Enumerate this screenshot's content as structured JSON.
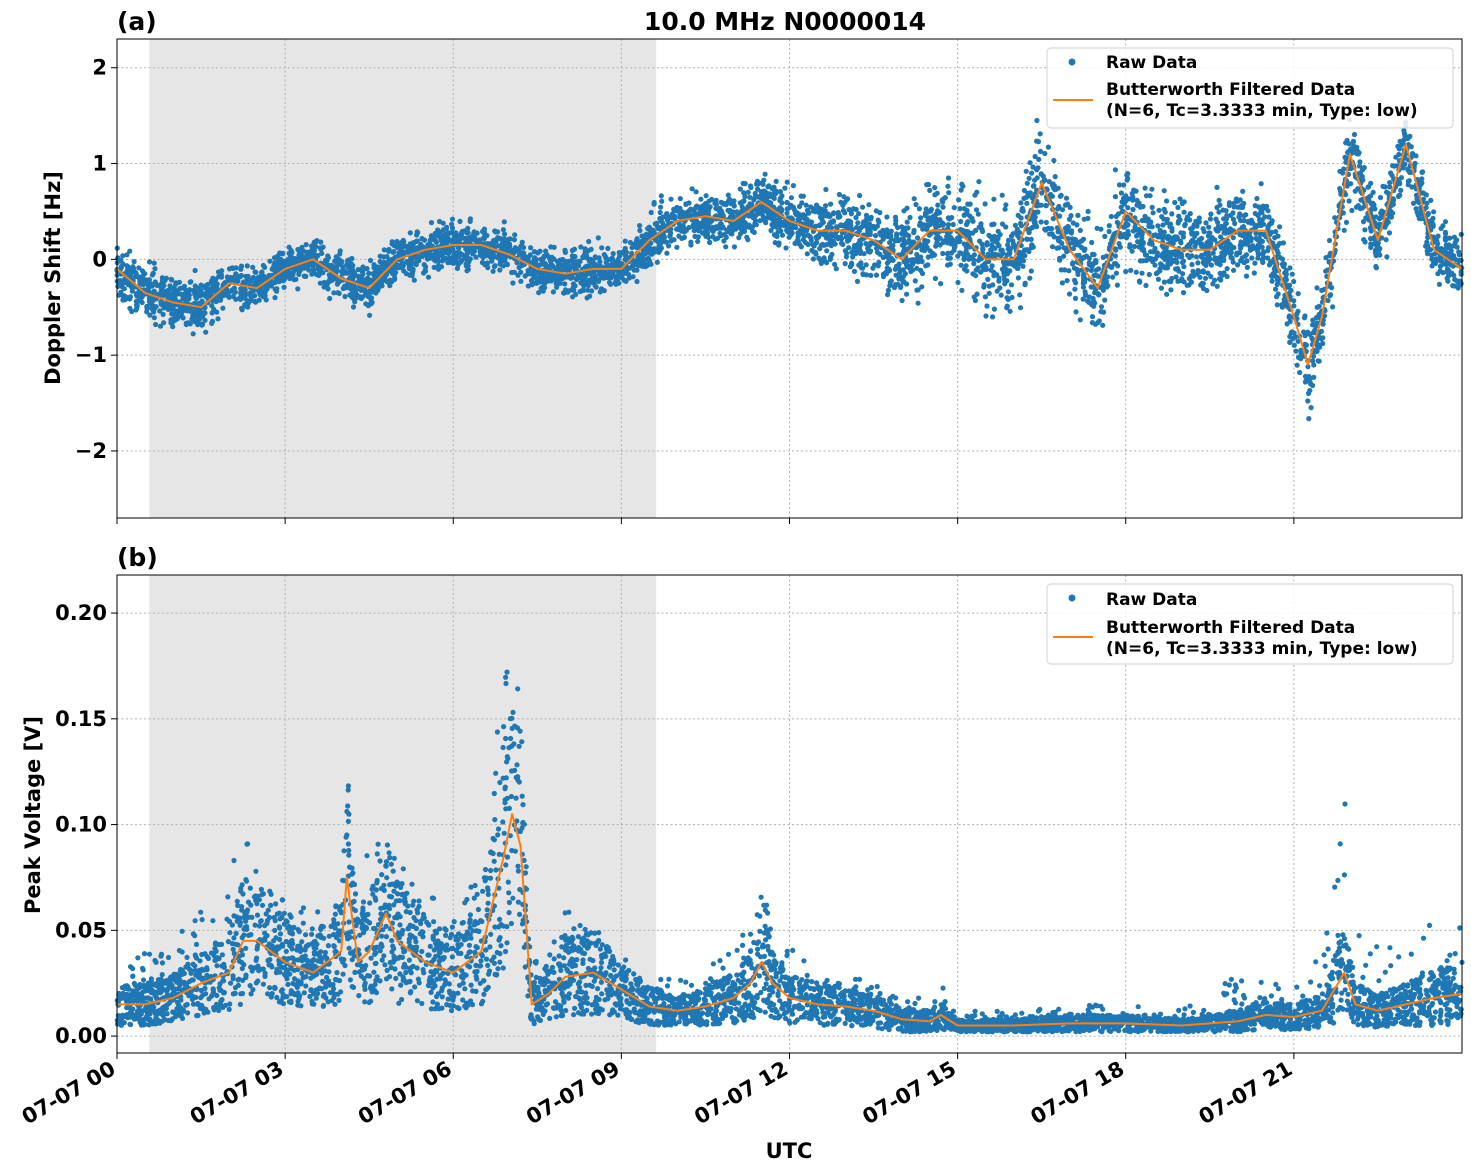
{
  "figure": {
    "title": "10.0 MHz N0000014",
    "xlabel": "UTC"
  },
  "colors": {
    "raw": "#1f77b4",
    "filtered": "#ff7f0e",
    "night_shade": "#e6e6e6",
    "grid": "#b0b0b0"
  },
  "legend": {
    "raw_label": "Raw Data",
    "filtered_line1": "Butterworth Filtered Data",
    "filtered_line2": "(N=6, Tc=3.3333 min, Type: low)",
    "placement": "top-right"
  },
  "chart_data": [
    {
      "type": "scatter",
      "panel_label": "(a)",
      "ylabel": "Doppler Shift [Hz]",
      "x_unit": "hours UTC",
      "xlim": [
        0,
        24
      ],
      "ylim": [
        -2.7,
        2.3
      ],
      "yticks": [
        -2,
        -1,
        0,
        1,
        2
      ],
      "ytick_labels": [
        "−2",
        "−1",
        "0",
        "1",
        "2"
      ],
      "xtick_labels": [
        "07-07 00",
        "07-07 03",
        "07-07 06",
        "07-07 09",
        "07-07 12",
        "07-07 15",
        "07-07 18",
        "07-07 21"
      ],
      "shaded_interval": [
        0.58,
        9.62
      ],
      "grid": true,
      "legend_placement": "top-right",
      "series": [
        {
          "name": "Butterworth Filtered Data",
          "x": [
            0,
            0.5,
            1,
            1.5,
            2,
            2.5,
            3,
            3.5,
            4,
            4.5,
            5,
            5.5,
            6,
            6.5,
            7,
            7.5,
            8,
            8.5,
            9,
            9.5,
            10,
            10.5,
            11,
            11.5,
            12,
            12.5,
            13,
            13.5,
            14,
            14.5,
            15,
            15.5,
            16,
            16.5,
            17,
            17.5,
            18,
            18.5,
            19,
            19.5,
            20,
            20.5,
            21,
            21.25,
            21.5,
            22,
            22.5,
            23,
            23.5,
            24
          ],
          "y": [
            -0.1,
            -0.35,
            -0.45,
            -0.5,
            -0.25,
            -0.3,
            -0.1,
            0.0,
            -0.2,
            -0.3,
            0.0,
            0.1,
            0.15,
            0.15,
            0.05,
            -0.1,
            -0.15,
            -0.1,
            -0.1,
            0.2,
            0.4,
            0.45,
            0.4,
            0.6,
            0.4,
            0.3,
            0.3,
            0.2,
            0.0,
            0.3,
            0.3,
            0.0,
            0.0,
            0.8,
            0.1,
            -0.3,
            0.5,
            0.2,
            0.1,
            0.1,
            0.3,
            0.3,
            -0.6,
            -1.1,
            -0.6,
            1.1,
            0.2,
            1.2,
            0.1,
            -0.1
          ]
        },
        {
          "name": "Raw Data",
          "envelope_note_x": [
            0,
            0.5,
            1,
            1.5,
            2,
            2.5,
            3,
            3.5,
            4,
            4.5,
            5,
            5.5,
            6,
            6.5,
            7,
            7.5,
            8,
            8.5,
            9,
            9.5,
            10,
            10.5,
            11,
            11.5,
            12,
            12.5,
            13,
            13.5,
            14,
            14.5,
            15,
            15.5,
            16,
            16.5,
            17,
            17.5,
            18,
            18.5,
            19,
            19.5,
            20,
            20.5,
            21,
            21.25,
            21.5,
            22,
            22.5,
            23,
            23.5,
            24
          ],
          "spread": [
            0.45,
            0.5,
            0.5,
            0.45,
            0.4,
            0.35,
            0.35,
            0.35,
            0.4,
            0.4,
            0.4,
            0.4,
            0.4,
            0.4,
            0.4,
            0.4,
            0.4,
            0.4,
            0.35,
            0.5,
            0.45,
            0.45,
            0.45,
            0.5,
            0.5,
            0.6,
            0.7,
            0.7,
            0.8,
            0.9,
            0.9,
            1.0,
            1.0,
            1.0,
            0.9,
            0.8,
            0.9,
            0.9,
            0.8,
            0.8,
            0.8,
            0.7,
            0.8,
            0.9,
            0.8,
            0.8,
            0.7,
            0.7,
            0.6,
            0.6
          ]
        }
      ]
    },
    {
      "type": "scatter",
      "panel_label": "(b)",
      "ylabel": "Peak Voltage [V]",
      "x_unit": "hours UTC",
      "xlim": [
        0,
        24
      ],
      "ylim": [
        -0.008,
        0.218
      ],
      "yticks": [
        0.0,
        0.05,
        0.1,
        0.15,
        0.2
      ],
      "ytick_labels": [
        "0.00",
        "0.05",
        "0.10",
        "0.15",
        "0.20"
      ],
      "xtick_labels": [
        "07-07 00",
        "07-07 03",
        "07-07 06",
        "07-07 09",
        "07-07 12",
        "07-07 15",
        "07-07 18",
        "07-07 21"
      ],
      "shaded_interval": [
        0.58,
        9.62
      ],
      "grid": true,
      "legend_placement": "top-right",
      "series": [
        {
          "name": "Butterworth Filtered Data",
          "x": [
            0,
            0.5,
            1,
            1.5,
            2,
            2.25,
            2.5,
            3,
            3.5,
            4,
            4.1,
            4.3,
            4.5,
            4.8,
            5,
            5.5,
            6,
            6.5,
            6.9,
            7.05,
            7.2,
            7.4,
            7.7,
            8,
            8.5,
            9,
            9.5,
            10,
            10.5,
            11,
            11.3,
            11.5,
            11.7,
            12,
            12.5,
            13,
            13.5,
            14,
            14.5,
            14.7,
            15,
            16,
            17,
            18,
            19,
            20,
            20.5,
            21,
            21.5,
            21.9,
            22.1,
            22.5,
            23,
            23.5,
            24
          ],
          "y": [
            0.015,
            0.015,
            0.018,
            0.025,
            0.03,
            0.045,
            0.045,
            0.035,
            0.03,
            0.04,
            0.075,
            0.035,
            0.04,
            0.058,
            0.045,
            0.035,
            0.03,
            0.04,
            0.085,
            0.105,
            0.09,
            0.015,
            0.02,
            0.028,
            0.03,
            0.022,
            0.014,
            0.012,
            0.014,
            0.018,
            0.025,
            0.035,
            0.025,
            0.018,
            0.015,
            0.014,
            0.012,
            0.008,
            0.007,
            0.01,
            0.005,
            0.005,
            0.006,
            0.006,
            0.005,
            0.007,
            0.01,
            0.009,
            0.012,
            0.03,
            0.015,
            0.012,
            0.015,
            0.018,
            0.02
          ]
        },
        {
          "name": "Raw Data",
          "envelope_note_x": [
            0,
            0.5,
            1,
            1.5,
            2,
            2.25,
            2.5,
            3,
            3.5,
            4,
            4.1,
            4.3,
            4.5,
            4.8,
            5,
            5.5,
            6,
            6.5,
            6.9,
            7.05,
            7.2,
            7.4,
            7.7,
            8,
            8.5,
            9,
            9.5,
            10,
            10.5,
            11,
            11.3,
            11.5,
            11.7,
            12,
            12.5,
            13,
            13.5,
            14,
            14.5,
            14.7,
            15,
            16,
            17,
            18,
            19,
            20,
            20.5,
            21,
            21.5,
            21.9,
            22.1,
            22.5,
            23,
            23.5,
            24
          ],
          "upper": [
            0.035,
            0.04,
            0.045,
            0.06,
            0.07,
            0.13,
            0.075,
            0.065,
            0.06,
            0.07,
            0.145,
            0.07,
            0.115,
            0.1,
            0.085,
            0.07,
            0.065,
            0.08,
            0.175,
            0.205,
            0.165,
            0.03,
            0.055,
            0.06,
            0.055,
            0.04,
            0.03,
            0.028,
            0.03,
            0.045,
            0.06,
            0.08,
            0.05,
            0.045,
            0.035,
            0.033,
            0.025,
            0.02,
            0.02,
            0.025,
            0.012,
            0.012,
            0.014,
            0.016,
            0.012,
            0.03,
            0.025,
            0.025,
            0.045,
            0.125,
            0.05,
            0.045,
            0.05,
            0.053,
            0.055
          ],
          "lower": [
            0.005,
            0.005,
            0.007,
            0.01,
            0.012,
            0.015,
            0.02,
            0.015,
            0.013,
            0.015,
            0.03,
            0.015,
            0.015,
            0.02,
            0.015,
            0.012,
            0.012,
            0.015,
            0.03,
            0.05,
            0.04,
            0.005,
            0.008,
            0.01,
            0.01,
            0.008,
            0.005,
            0.005,
            0.005,
            0.006,
            0.008,
            0.01,
            0.008,
            0.006,
            0.005,
            0.005,
            0.004,
            0.002,
            0.002,
            0.003,
            0.002,
            0.002,
            0.002,
            0.002,
            0.002,
            0.002,
            0.003,
            0.003,
            0.004,
            0.008,
            0.005,
            0.004,
            0.005,
            0.005,
            0.006
          ]
        }
      ]
    }
  ]
}
